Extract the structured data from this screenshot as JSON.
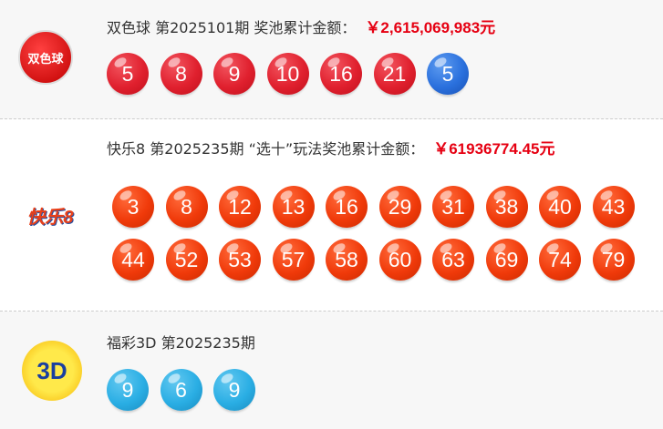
{
  "lotteries": [
    {
      "name": "双色球",
      "title": "双色球 第2025101期 奖池累计金额：",
      "amount": "￥2,615,069,983元",
      "logo_text": "双色球",
      "red": [
        "5",
        "8",
        "9",
        "10",
        "16",
        "21"
      ],
      "blue": [
        "5"
      ]
    },
    {
      "name": "快乐8",
      "title": "快乐8 第2025235期 “选十”玩法奖池累计金额：",
      "amount": "￥61936774.45元",
      "logo_text": "快乐8",
      "balls": [
        "3",
        "8",
        "12",
        "13",
        "16",
        "29",
        "31",
        "38",
        "40",
        "43",
        "44",
        "52",
        "53",
        "57",
        "58",
        "60",
        "63",
        "69",
        "74",
        "79"
      ]
    },
    {
      "name": "福彩3D",
      "title": "福彩3D 第2025235期",
      "logo_text": "3D",
      "balls": [
        "9",
        "6",
        "9"
      ]
    }
  ],
  "colors": {
    "red_ball": "#e0202e",
    "blue_ball": "#2a70dd",
    "orange_ball": "#f03a0a",
    "sky_ball": "#2aaee4",
    "amount": "#e60012"
  }
}
